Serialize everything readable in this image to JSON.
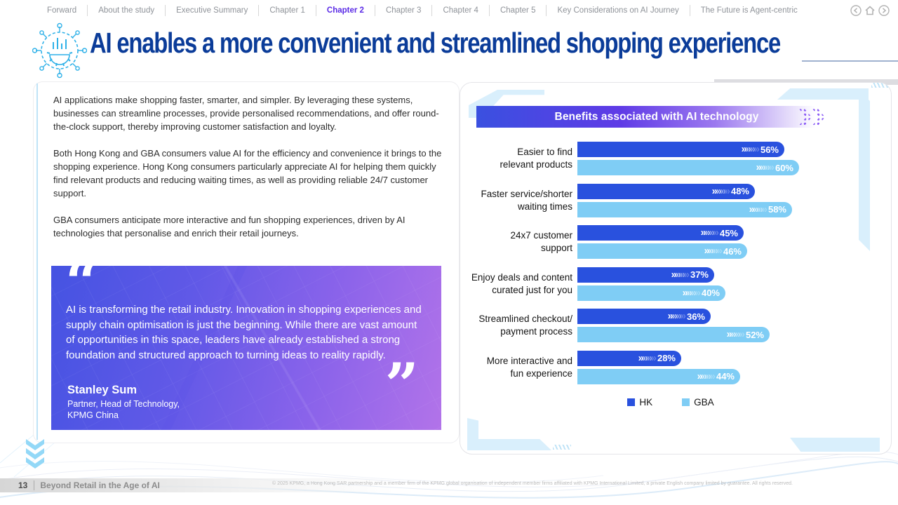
{
  "nav": {
    "items": [
      {
        "label": "Forward",
        "active": false
      },
      {
        "label": "About the study",
        "active": false
      },
      {
        "label": "Executive Summary",
        "active": false
      },
      {
        "label": "Chapter 1",
        "active": false
      },
      {
        "label": "Chapter 2",
        "active": true
      },
      {
        "label": "Chapter 3",
        "active": false
      },
      {
        "label": "Chapter 4",
        "active": false
      },
      {
        "label": "Chapter 5",
        "active": false
      },
      {
        "label": "Key Considerations on AI Journey",
        "active": false
      },
      {
        "label": "The Future is Agent-centric",
        "active": false
      }
    ]
  },
  "header": {
    "title": "AI enables a more convenient and streamlined shopping experience"
  },
  "main": {
    "paragraphs": [
      "AI applications make shopping faster, smarter, and simpler. By leveraging these systems, businesses can streamline processes, provide personalised recommendations, and offer round-the-clock support, thereby improving customer satisfaction and loyalty.",
      "Both Hong Kong and GBA consumers value AI for the efficiency and convenience it brings to the shopping experience. Hong Kong consumers particularly appreciate AI for helping them quickly find relevant products and reducing waiting times, as well as providing reliable 24/7 customer support.",
      "GBA consumers anticipate more interactive and fun shopping experiences, driven by AI technologies that personalise and enrich their retail journeys."
    ]
  },
  "quote": {
    "open_mark": "“",
    "close_mark": "”",
    "text": "AI is transforming the retail industry. Innovation in shopping experiences and supply chain optimisation is just the beginning. While there are vast amount of opportunities in this space, leaders have already established a strong foundation and structured approach to turning ideas to reality rapidly.",
    "author": "Stanley Sum",
    "role_line1": "Partner, Head of Technology,",
    "role_line2": "KPMG China"
  },
  "chart_data": {
    "type": "bar",
    "orientation": "horizontal",
    "title": "Benefits associated with AI technology",
    "categories": [
      "Easier to find relevant products",
      "Faster service/shorter waiting times",
      "24x7 customer support",
      "Enjoy deals and content curated just for you",
      "Streamlined checkout/ payment process",
      "More interactive and fun experience"
    ],
    "category_lines": [
      [
        "Easier to find",
        "relevant products"
      ],
      [
        "Faster service/shorter",
        "waiting times"
      ],
      [
        "24x7 customer",
        "support"
      ],
      [
        "Enjoy deals and content",
        "curated just for you"
      ],
      [
        "Streamlined checkout/",
        "payment process"
      ],
      [
        "More interactive and",
        "fun experience"
      ]
    ],
    "series": [
      {
        "name": "HK",
        "color": "#2951de",
        "values": [
          56,
          48,
          45,
          37,
          36,
          28
        ]
      },
      {
        "name": "GBA",
        "color": "#7fcdf5",
        "values": [
          60,
          58,
          46,
          40,
          52,
          44
        ]
      }
    ],
    "value_suffix": "%",
    "xlim": [
      0,
      60
    ],
    "grid": false,
    "legend_position": "bottom",
    "bar_end_decoration": "white fading chevrons"
  },
  "footer": {
    "page_number": "13",
    "report_title": "Beyond Retail in the Age of AI",
    "copyright": "© 2025 KPMG, a Hong Kong SAR partnership and a member firm of the KPMG global organisation of independent member firms affiliated with KPMG International Limited, a private English company limited by guarantee. All rights reserved."
  },
  "colors": {
    "title_navy": "#0b3c99",
    "nav_active": "#5a2ae6",
    "hk_bar": "#2951de",
    "gba_bar": "#7fcdf5",
    "banner_gradient_start": "#3a50e0",
    "banner_gradient_mid": "#9b78ef",
    "quote_gradient_start": "#4553e2",
    "quote_gradient_end": "#b273e9",
    "decor_light_blue": "#d9effc"
  }
}
